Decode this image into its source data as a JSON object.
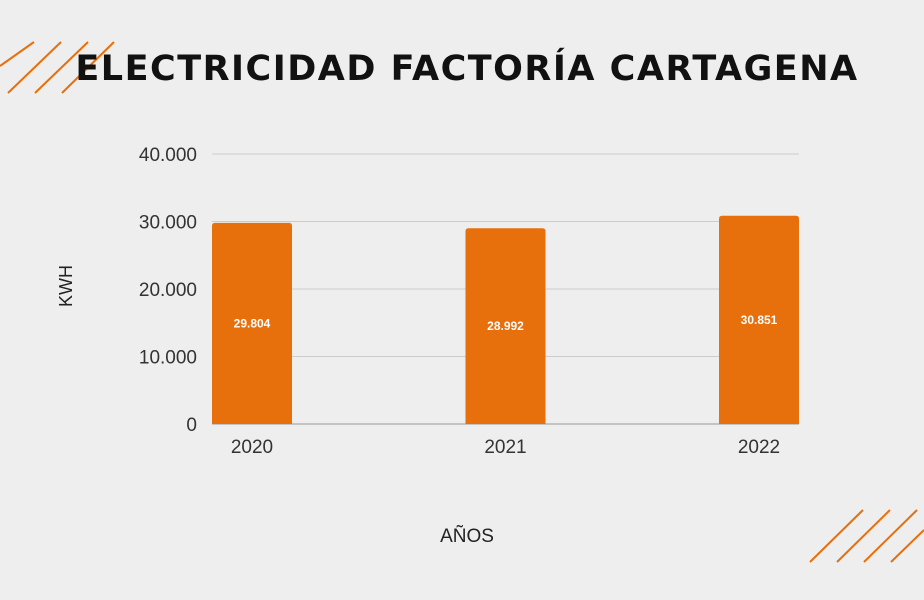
{
  "chart_data": {
    "type": "bar",
    "title": "ELECTRICIDAD FACTORÍA CARTAGENA",
    "xlabel": "AÑOS",
    "ylabel": "KWH",
    "categories": [
      "2020",
      "2021",
      "2022"
    ],
    "values": [
      29804,
      28992,
      30851
    ],
    "value_labels": [
      "29.804",
      "28.992",
      "30.851"
    ],
    "ylim": [
      0,
      40000
    ],
    "yticks": [
      0,
      10000,
      20000,
      30000,
      40000
    ],
    "ytick_labels": [
      "0",
      "10.000",
      "20.000",
      "30.000",
      "40.000"
    ],
    "grid": true,
    "legend": "none",
    "colors": {
      "bar": "#e76f0c",
      "background": "#eeeeee",
      "text": "#111111",
      "axis_text": "#333333",
      "grid": "#cccccc",
      "decoration": "#e76f0c"
    }
  }
}
